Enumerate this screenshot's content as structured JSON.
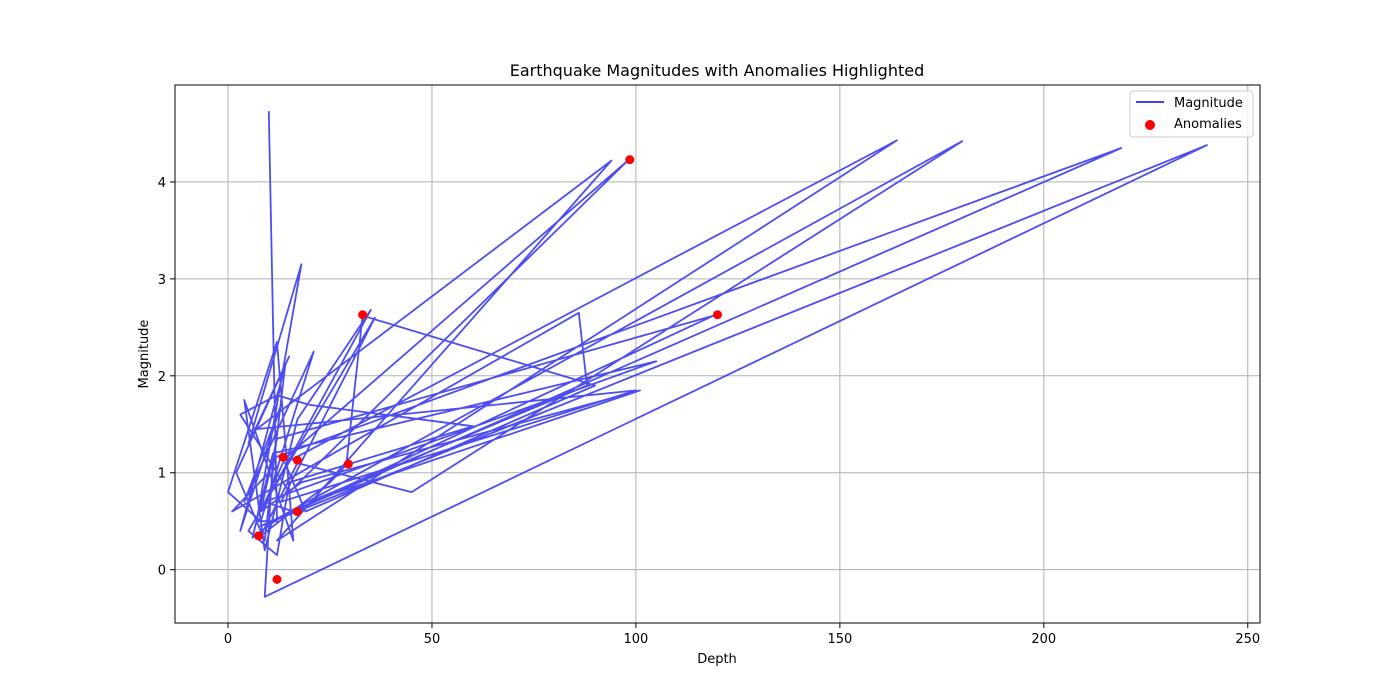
{
  "chart_data": {
    "type": "line",
    "title": "Earthquake Magnitudes with Anomalies Highlighted",
    "xlabel": "Depth",
    "ylabel": "Magnitude",
    "xlim": [
      -13,
      253
    ],
    "ylim": [
      -0.55,
      5.0
    ],
    "xticks": [
      0,
      50,
      100,
      150,
      200,
      250
    ],
    "yticks": [
      0,
      1,
      2,
      3,
      4
    ],
    "grid": true,
    "legend_position": "top-right",
    "series": [
      {
        "name": "Magnitude",
        "type": "line",
        "color": "#4444ee",
        "x": [
          10,
          12,
          7,
          18,
          5,
          15,
          2,
          9,
          14,
          3,
          13,
          4,
          21,
          8,
          0,
          12,
          16,
          4,
          9,
          17,
          35,
          8,
          14,
          98,
          15,
          3,
          12,
          20,
          60,
          15,
          12,
          5,
          36,
          13,
          100,
          7,
          94,
          12,
          164,
          14,
          19,
          90,
          33,
          29,
          25,
          8,
          17,
          45,
          180,
          13,
          6,
          11,
          105,
          9,
          16,
          219,
          11,
          9,
          240,
          8,
          119,
          12,
          8,
          18,
          101,
          20,
          88,
          86,
          1,
          10
        ],
        "y": [
          4.73,
          0.5,
          0.5,
          3.15,
          1.3,
          2.2,
          1.0,
          0.3,
          2.1,
          0.4,
          1.7,
          0.7,
          2.25,
          0.5,
          0.8,
          2.35,
          0.3,
          1.75,
          0.2,
          1.55,
          2.68,
          0.6,
          1.15,
          4.22,
          0.8,
          1.6,
          1.8,
          1.7,
          1.48,
          0.9,
          0.15,
          0.4,
          2.6,
          0.7,
          1.85,
          1.45,
          4.22,
          0.3,
          4.43,
          1.1,
          0.6,
          1.9,
          2.62,
          1.08,
          0.9,
          0.35,
          1.1,
          0.8,
          4.42,
          0.55,
          0.33,
          1.2,
          2.15,
          0.7,
          0.6,
          4.35,
          1.15,
          -0.28,
          4.38,
          0.45,
          2.62,
          1.35,
          0.6,
          0.9,
          1.85,
          0.7,
          1.9,
          2.65,
          0.6,
          1.0
        ]
      },
      {
        "name": "Anomalies",
        "type": "scatter",
        "color": "#ff0000",
        "x": [
          98.5,
          120.0,
          33.0,
          13.5,
          17.0,
          29.5,
          17.0,
          7.5,
          12.0
        ],
        "y": [
          4.23,
          2.63,
          2.63,
          1.16,
          1.13,
          1.09,
          0.6,
          0.35,
          -0.1
        ]
      }
    ]
  }
}
